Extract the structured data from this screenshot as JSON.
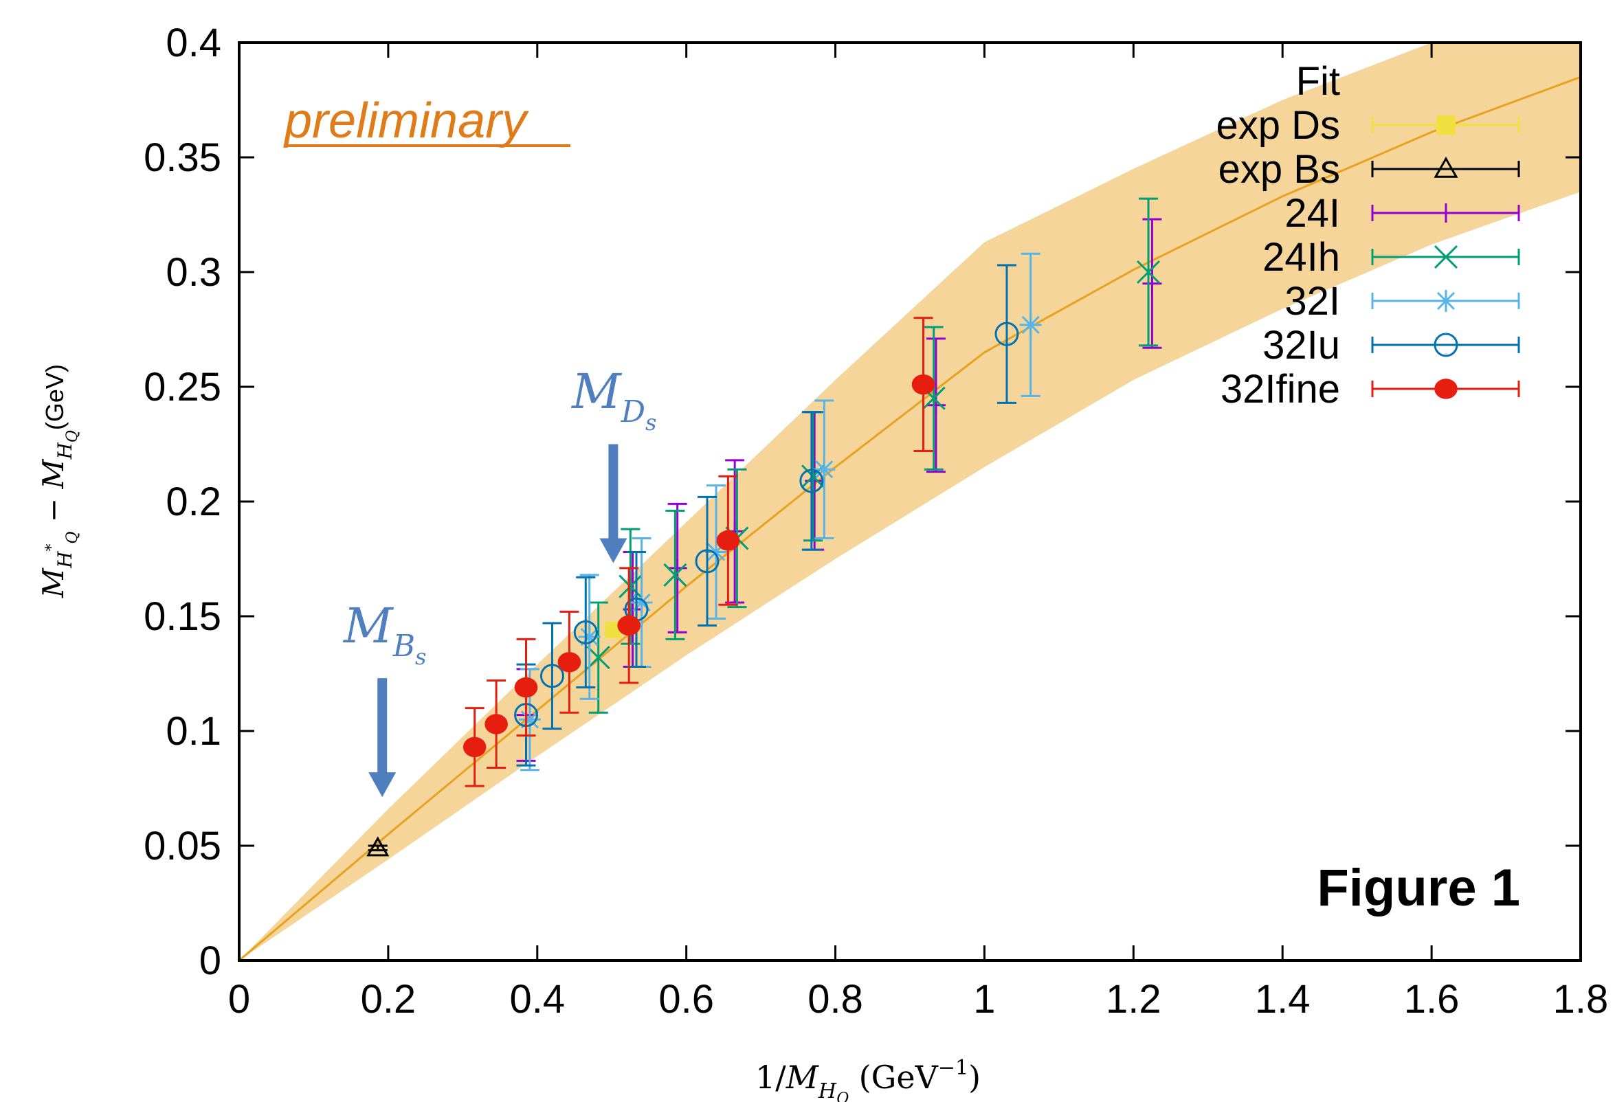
{
  "chart_data": {
    "type": "scatter",
    "xlabel": "1/M_{H_Q} (GeV^{-1})",
    "ylabel": "M_{H_Q^*} − M_{H_Q} (GeV)",
    "xlim": [
      0,
      1.8
    ],
    "ylim": [
      0,
      0.4
    ],
    "x_ticks": [
      "0",
      "0.2",
      "0.4",
      "0.6",
      "0.8",
      "1",
      "1.2",
      "1.4",
      "1.6",
      "1.8"
    ],
    "y_ticks": [
      "0",
      "0.05",
      "0.1",
      "0.15",
      "0.2",
      "0.25",
      "0.3",
      "0.35",
      "0.4"
    ],
    "grid": false,
    "legend_position": "top-right",
    "annotations": {
      "preliminary": "preliminary",
      "figure_label": "Figure 1",
      "arrow_ds": "M_{D_s}",
      "arrow_bs": "M_{B_s}"
    },
    "arrows": [
      {
        "label": "M_{D_s}",
        "x": 0.502,
        "y_from": 0.225,
        "y_to": 0.175
      },
      {
        "label": "M_{B_s}",
        "x": 0.192,
        "y_from": 0.123,
        "y_to": 0.073
      }
    ],
    "fit": {
      "name": "Fit",
      "color": "#f5d59a",
      "line_color": "#e8a21f",
      "x": [
        0,
        0.2,
        0.4,
        0.6,
        0.8,
        1.0,
        1.2,
        1.4,
        1.6,
        1.8
      ],
      "center": [
        0,
        0.055,
        0.109,
        0.163,
        0.215,
        0.265,
        0.301,
        0.333,
        0.361,
        0.385
      ],
      "lower": [
        0,
        0.044,
        0.089,
        0.133,
        0.175,
        0.215,
        0.253,
        0.284,
        0.312,
        0.335
      ],
      "upper": [
        0,
        0.066,
        0.129,
        0.191,
        0.253,
        0.313,
        0.345,
        0.375,
        0.4,
        0.42
      ]
    },
    "series": [
      {
        "name": "exp Ds",
        "color": "#f0e040",
        "marker": "filled-square",
        "points": [
          {
            "x": 0.502,
            "y": 0.144,
            "err": 0.001
          }
        ]
      },
      {
        "name": "exp Bs",
        "color": "#000000",
        "marker": "open-triangle",
        "points": [
          {
            "x": 0.186,
            "y": 0.049,
            "err": 0.001
          }
        ]
      },
      {
        "name": "24I",
        "color": "#9400d3",
        "marker": "plus",
        "points": [
          {
            "x": 0.385,
            "y": 0.107,
            "err": 0.02
          },
          {
            "x": 0.528,
            "y": 0.153,
            "err": 0.025
          },
          {
            "x": 0.588,
            "y": 0.171,
            "err": 0.028
          },
          {
            "x": 0.665,
            "y": 0.187,
            "err": 0.031
          },
          {
            "x": 0.772,
            "y": 0.209,
            "err": 0.03
          },
          {
            "x": 0.935,
            "y": 0.242,
            "err": 0.029
          },
          {
            "x": 1.225,
            "y": 0.295,
            "err": 0.028
          }
        ]
      },
      {
        "name": "24Ih",
        "color": "#009e73",
        "marker": "cross",
        "points": [
          {
            "x": 0.482,
            "y": 0.132,
            "err": 0.024
          },
          {
            "x": 0.525,
            "y": 0.163,
            "err": 0.025
          },
          {
            "x": 0.585,
            "y": 0.168,
            "err": 0.028
          },
          {
            "x": 0.668,
            "y": 0.184,
            "err": 0.03
          },
          {
            "x": 0.77,
            "y": 0.211,
            "err": 0.028
          },
          {
            "x": 0.932,
            "y": 0.245,
            "err": 0.031
          },
          {
            "x": 1.22,
            "y": 0.3,
            "err": 0.032
          }
        ]
      },
      {
        "name": "32I",
        "color": "#56b4e9",
        "marker": "star",
        "points": [
          {
            "x": 0.39,
            "y": 0.105,
            "err": 0.022
          },
          {
            "x": 0.47,
            "y": 0.141,
            "err": 0.027
          },
          {
            "x": 0.54,
            "y": 0.156,
            "err": 0.028
          },
          {
            "x": 0.64,
            "y": 0.178,
            "err": 0.029
          },
          {
            "x": 0.785,
            "y": 0.214,
            "err": 0.03
          },
          {
            "x": 1.062,
            "y": 0.277,
            "err": 0.031
          }
        ]
      },
      {
        "name": "32Iu",
        "color": "#0072b2",
        "marker": "open-circle",
        "points": [
          {
            "x": 0.385,
            "y": 0.107,
            "err": 0.022
          },
          {
            "x": 0.42,
            "y": 0.124,
            "err": 0.023
          },
          {
            "x": 0.465,
            "y": 0.143,
            "err": 0.024
          },
          {
            "x": 0.533,
            "y": 0.153,
            "err": 0.025
          },
          {
            "x": 0.628,
            "y": 0.174,
            "err": 0.028
          },
          {
            "x": 0.768,
            "y": 0.209,
            "err": 0.03
          },
          {
            "x": 1.03,
            "y": 0.273,
            "err": 0.03
          }
        ]
      },
      {
        "name": "32Ifine",
        "color": "#e51e10",
        "marker": "filled-circle",
        "points": [
          {
            "x": 0.316,
            "y": 0.093,
            "err": 0.017
          },
          {
            "x": 0.345,
            "y": 0.103,
            "err": 0.019
          },
          {
            "x": 0.385,
            "y": 0.119,
            "err": 0.021
          },
          {
            "x": 0.443,
            "y": 0.13,
            "err": 0.022
          },
          {
            "x": 0.523,
            "y": 0.146,
            "err": 0.025
          },
          {
            "x": 0.656,
            "y": 0.183,
            "err": 0.028
          },
          {
            "x": 0.918,
            "y": 0.251,
            "err": 0.029
          }
        ]
      }
    ]
  }
}
